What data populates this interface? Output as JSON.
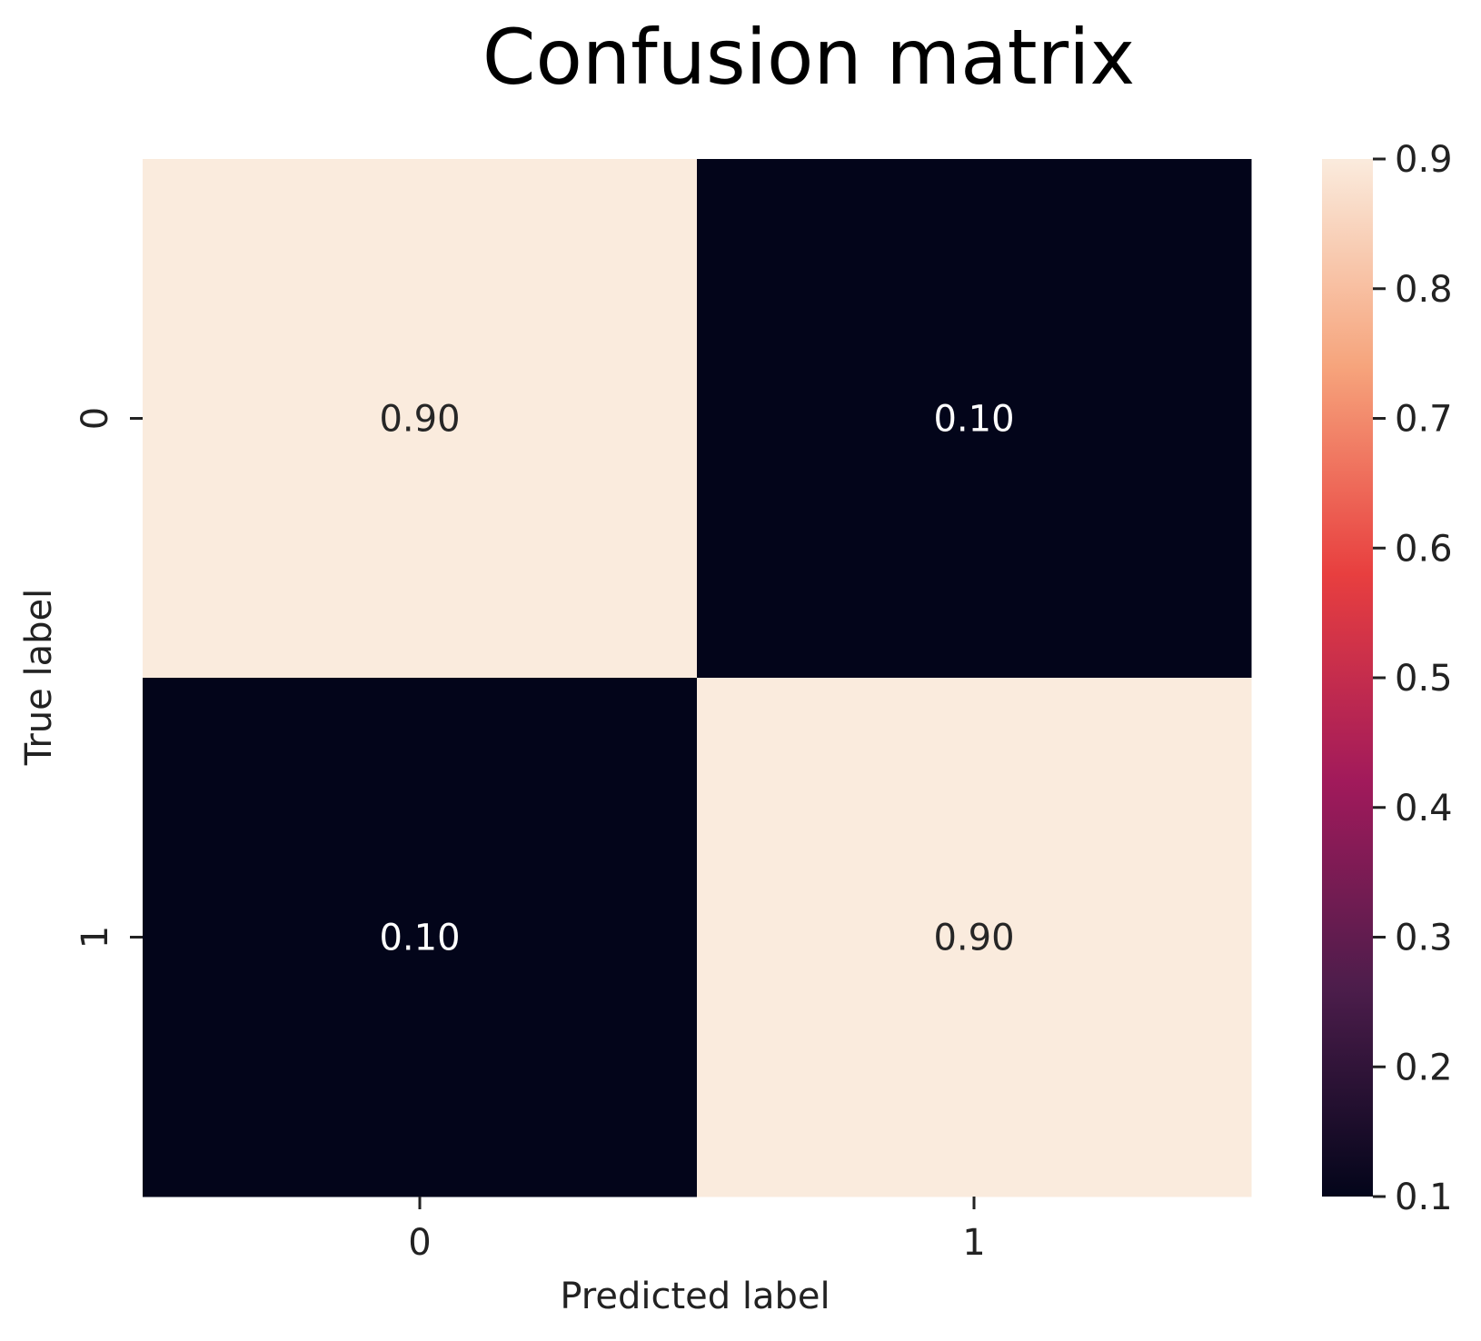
{
  "chart_data": {
    "type": "heatmap",
    "title": "Confusion matrix",
    "xlabel": "Predicted label",
    "ylabel": "True label",
    "x_categories": [
      "0",
      "1"
    ],
    "y_categories": [
      "0",
      "1"
    ],
    "values": [
      [
        0.9,
        0.1
      ],
      [
        0.1,
        0.9
      ]
    ],
    "annotations": [
      [
        "0.90",
        "0.10"
      ],
      [
        "0.10",
        "0.90"
      ]
    ],
    "colorbar": {
      "range": [
        0.1,
        0.9
      ],
      "ticks": [
        0.1,
        0.2,
        0.3,
        0.4,
        0.5,
        0.6,
        0.7,
        0.8,
        0.9
      ],
      "tick_labels": [
        "0.1",
        "0.2",
        "0.3",
        "0.4",
        "0.5",
        "0.6",
        "0.7",
        "0.8",
        "0.9"
      ],
      "colormap": "rocket",
      "gradient_stops": [
        "#03051a",
        "#4c1d4b",
        "#a11a5b",
        "#e83f3f",
        "#f6a47c",
        "#faebdd"
      ]
    },
    "colors": {
      "high": "#faebdd",
      "low": "#03051a",
      "annot_on_light": "#262626",
      "annot_on_dark": "#ffffff"
    },
    "grid": false
  }
}
